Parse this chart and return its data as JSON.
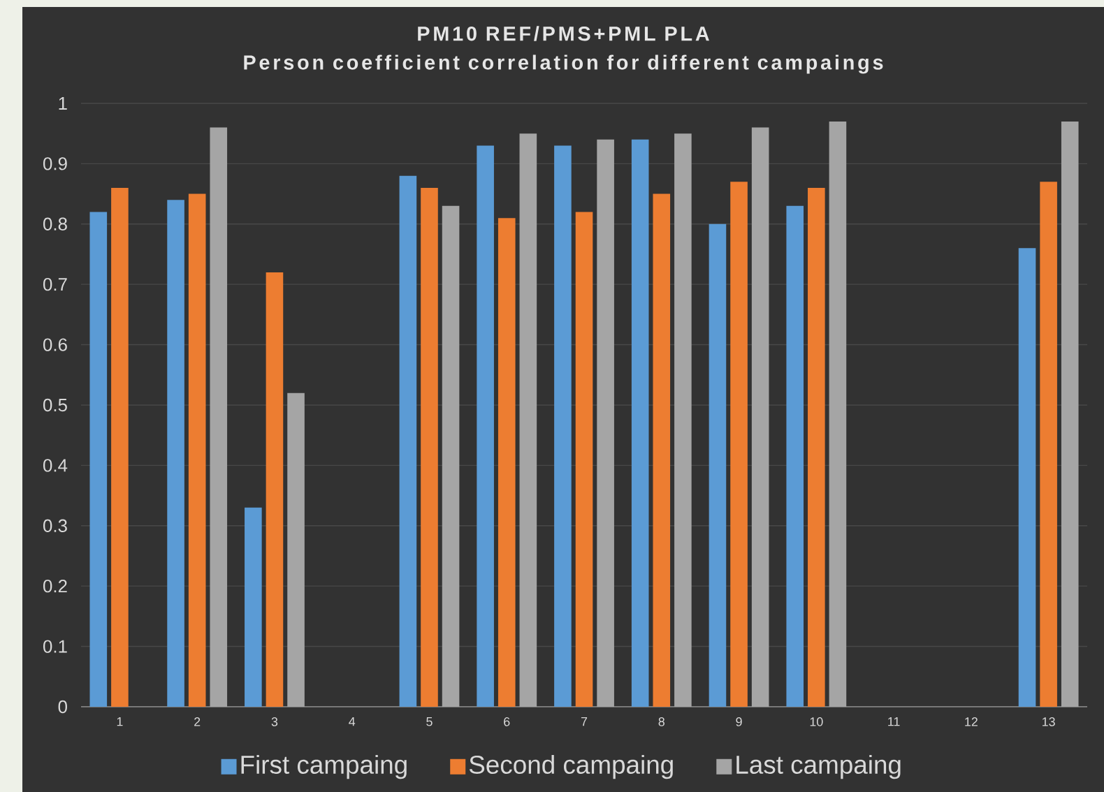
{
  "chart_data": {
    "type": "bar",
    "title": "PM10 REF/PMS+PML PLA",
    "subtitle": "Person coefficient correlation for different campaings",
    "categories": [
      "1",
      "2",
      "3",
      "4",
      "5",
      "6",
      "7",
      "8",
      "9",
      "10",
      "11",
      "12",
      "13"
    ],
    "series": [
      {
        "name": "First campaing",
        "color": "#5b9bd5",
        "values": [
          0.82,
          0.84,
          0.33,
          null,
          0.88,
          0.93,
          0.93,
          0.94,
          0.8,
          0.83,
          null,
          null,
          0.76
        ]
      },
      {
        "name": "Second campaing",
        "color": "#ed7d31",
        "values": [
          0.86,
          0.85,
          0.72,
          null,
          0.86,
          0.81,
          0.82,
          0.85,
          0.87,
          0.86,
          null,
          null,
          0.87
        ]
      },
      {
        "name": "Last campaing",
        "color": "#a5a5a5",
        "values": [
          null,
          0.96,
          0.52,
          null,
          0.83,
          0.95,
          0.94,
          0.95,
          0.96,
          0.97,
          null,
          null,
          0.97
        ]
      }
    ],
    "ylim": [
      0,
      1
    ],
    "yticks": [
      0,
      0.1,
      0.2,
      0.3,
      0.4,
      0.5,
      0.6,
      0.7,
      0.8,
      0.9,
      1
    ],
    "grid": "y",
    "legend": "bottom"
  }
}
